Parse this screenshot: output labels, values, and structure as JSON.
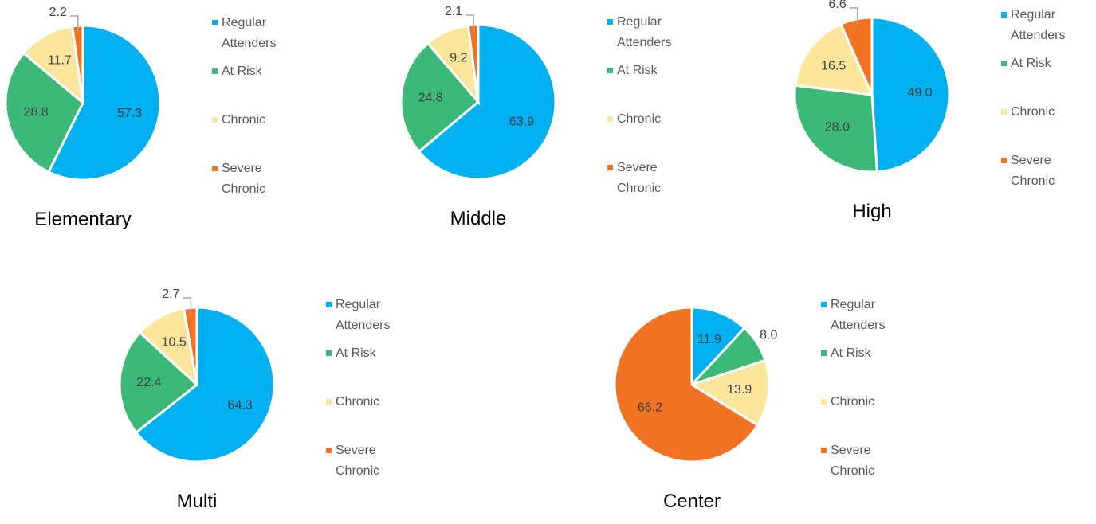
{
  "chart_data": [
    {
      "type": "pie",
      "title": "Elementary",
      "categories": [
        "Regular Attenders",
        "At Risk",
        "Chronic",
        "Severe Chronic"
      ],
      "values": [
        57.3,
        28.8,
        11.7,
        2.2
      ],
      "value_labels": [
        "57.3",
        "28.8",
        "11.7",
        "2.2"
      ],
      "colors": [
        "#00b0f0",
        "#3cb878",
        "#fce69c",
        "#f07222"
      ]
    },
    {
      "type": "pie",
      "title": "Middle",
      "categories": [
        "Regular Attenders",
        "At Risk",
        "Chronic",
        "Severe Chronic"
      ],
      "values": [
        63.9,
        24.8,
        9.2,
        2.1
      ],
      "value_labels": [
        "63.9",
        "24.8",
        "9.2",
        "2.1"
      ],
      "colors": [
        "#00b0f0",
        "#3cb878",
        "#fce69c",
        "#f07222"
      ]
    },
    {
      "type": "pie",
      "title": "High",
      "categories": [
        "Regular Attenders",
        "At Risk",
        "Chronic",
        "Severe Chronic"
      ],
      "values": [
        49.0,
        28.0,
        16.5,
        6.6
      ],
      "value_labels": [
        "49.0",
        "28.0",
        "16.5",
        "6.6"
      ],
      "colors": [
        "#00b0f0",
        "#3cb878",
        "#fce69c",
        "#f07222"
      ]
    },
    {
      "type": "pie",
      "title": "Multi",
      "categories": [
        "Regular Attenders",
        "At Risk",
        "Chronic",
        "Severe Chronic"
      ],
      "values": [
        64.3,
        22.4,
        10.5,
        2.7
      ],
      "value_labels": [
        "64.3",
        "22.4",
        "10.5",
        "2.7"
      ],
      "colors": [
        "#00b0f0",
        "#3cb878",
        "#fce69c",
        "#f07222"
      ]
    },
    {
      "type": "pie",
      "title": "Center",
      "categories": [
        "Regular Attenders",
        "At Risk",
        "Chronic",
        "Severe Chronic"
      ],
      "values": [
        11.9,
        8.0,
        13.9,
        66.2
      ],
      "value_labels": [
        "11.9",
        "8.0",
        "13.9",
        "66.2"
      ],
      "colors": [
        "#00b0f0",
        "#3cb878",
        "#fce69c",
        "#f07222"
      ]
    }
  ]
}
